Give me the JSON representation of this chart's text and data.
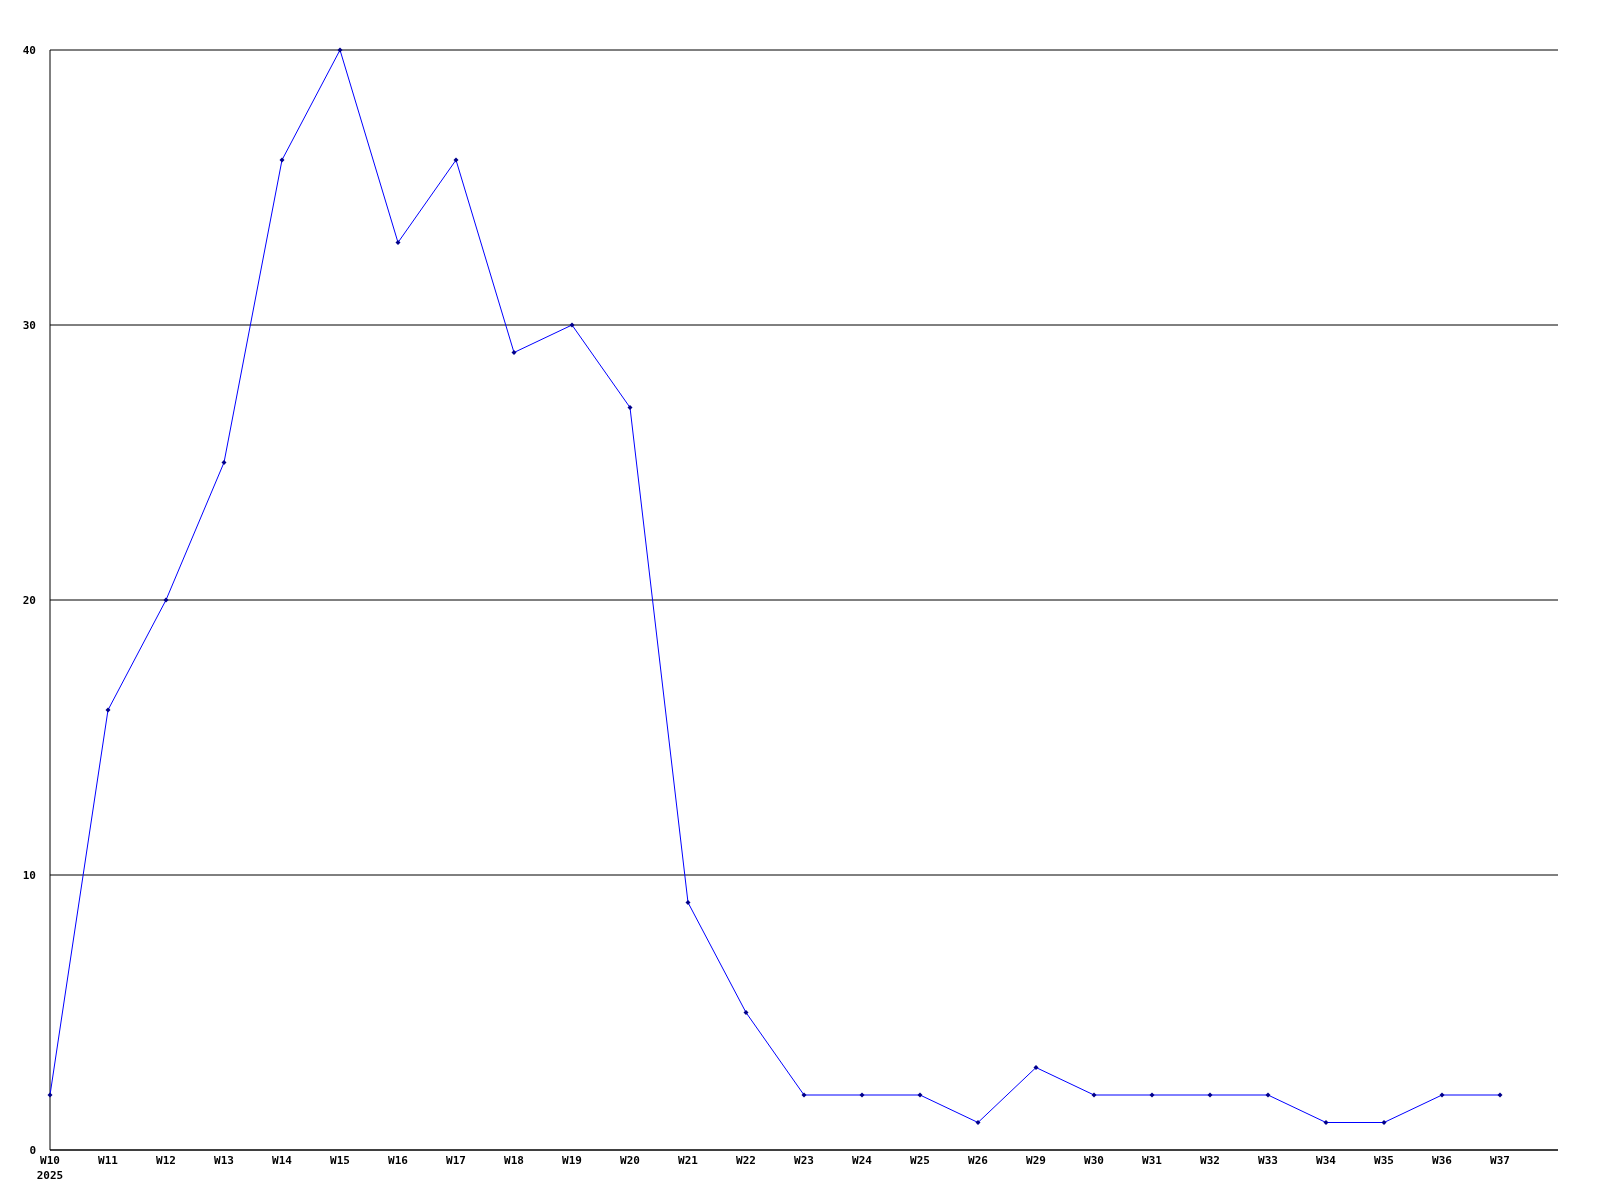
{
  "chart_data": {
    "type": "line",
    "categories": [
      "W10\n2025",
      "W11",
      "W12",
      "W13",
      "W14",
      "W15",
      "W16",
      "W17",
      "W18",
      "W19",
      "W20",
      "W21",
      "W22",
      "W23",
      "W24",
      "W25",
      "W26",
      "W29",
      "W30",
      "W31",
      "W32",
      "W33",
      "W34",
      "W35",
      "W36",
      "W37"
    ],
    "series": [
      {
        "color": "#0000ff",
        "values": [
          2,
          16,
          20,
          25,
          36,
          40,
          33,
          36,
          29,
          30,
          27,
          9,
          5,
          2,
          2,
          2,
          1,
          3,
          2,
          2,
          2,
          2,
          1,
          1,
          2,
          2
        ]
      }
    ],
    "ylim": [
      0,
      40
    ],
    "yticks": [
      0,
      10,
      20,
      30,
      40
    ],
    "grid": "y",
    "marker": "diamond",
    "line_style": "solid"
  }
}
